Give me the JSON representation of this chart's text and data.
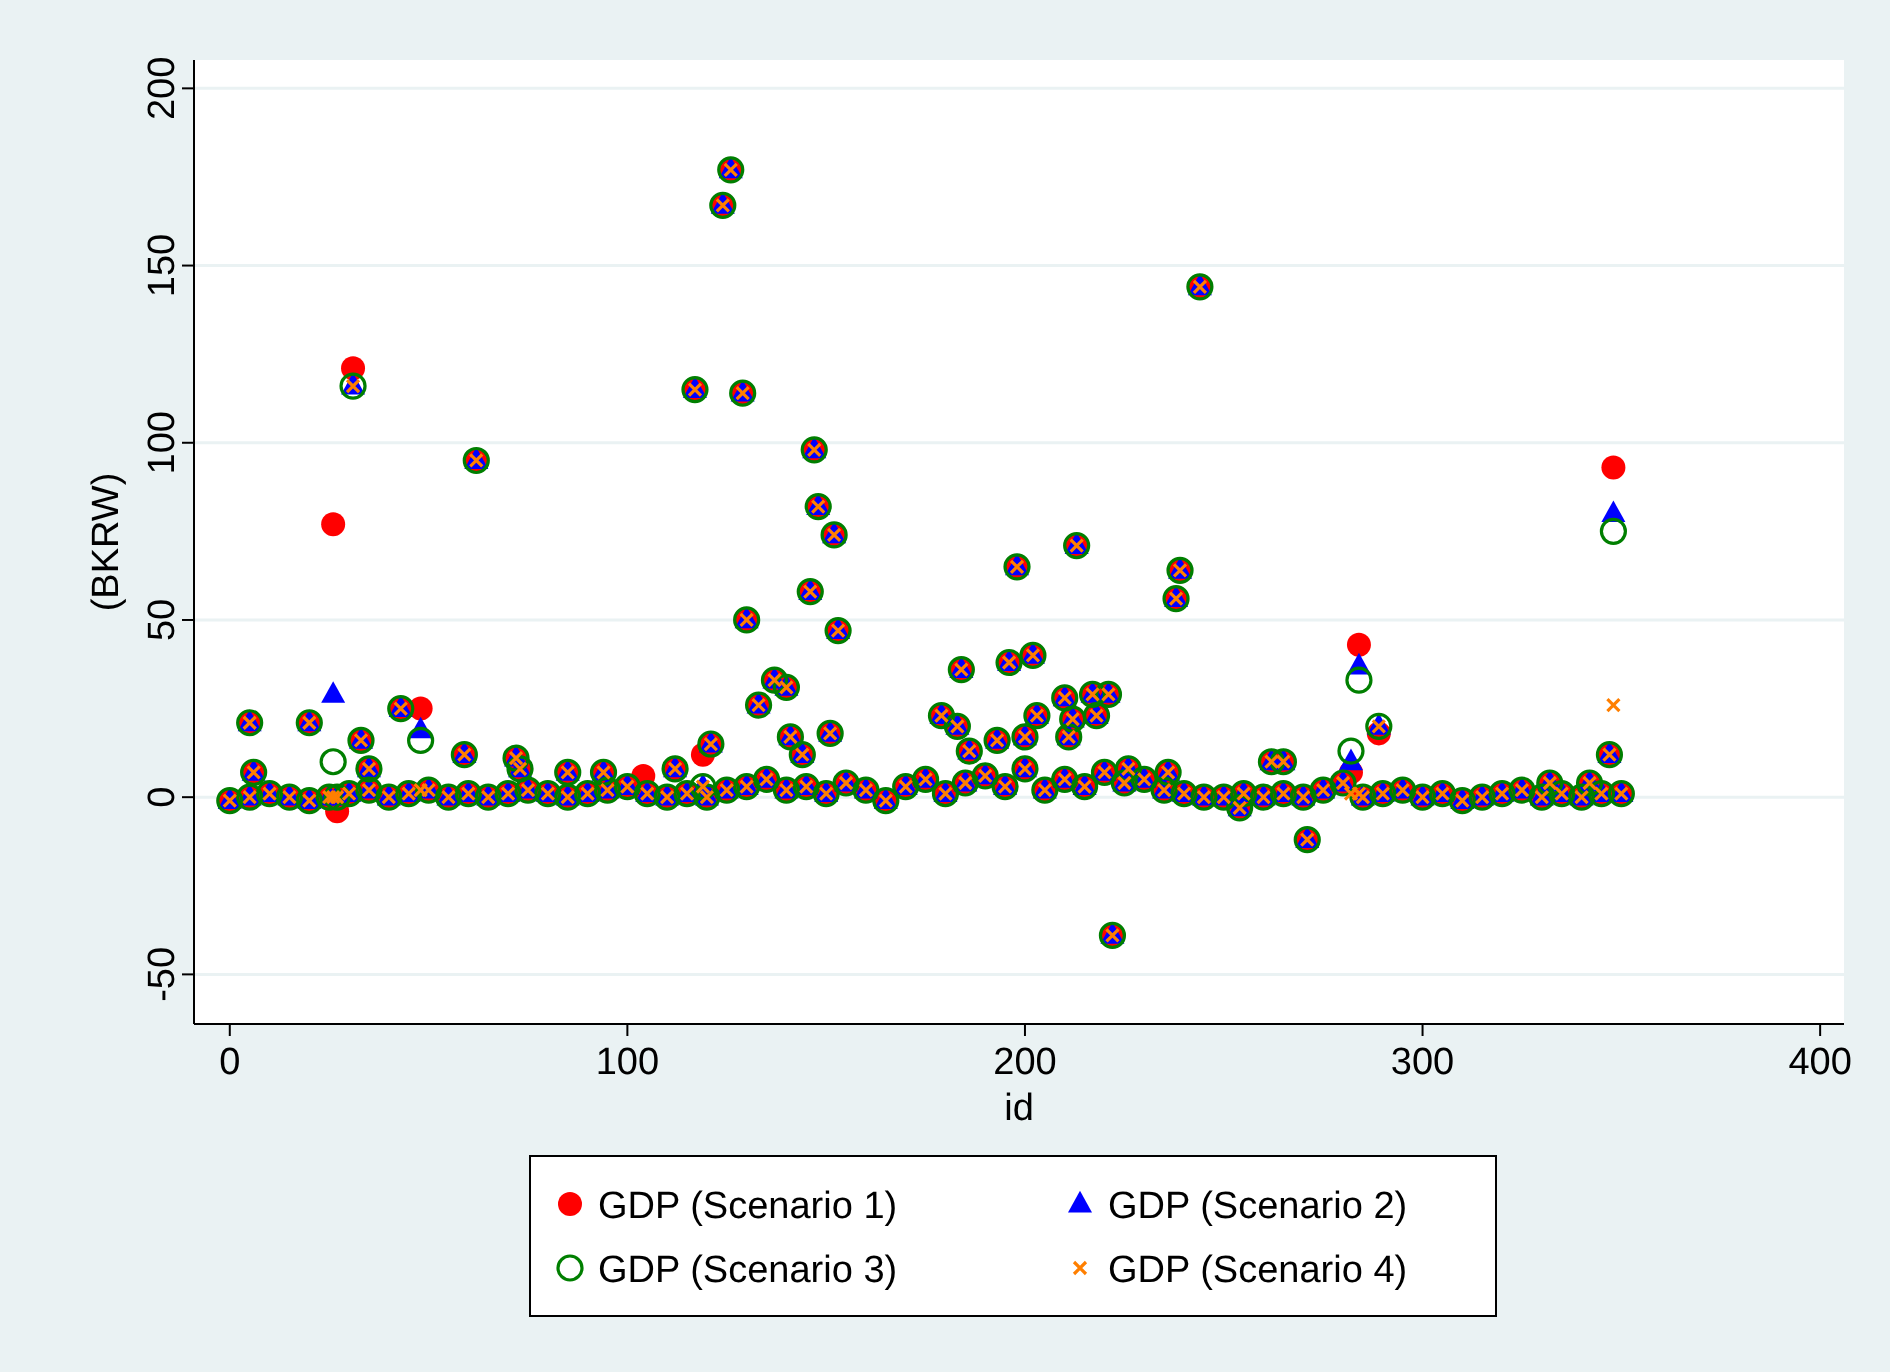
{
  "chart_data": {
    "type": "scatter",
    "xlabel": "id",
    "ylabel": "(BKRW)",
    "xlim": [
      -9,
      406
    ],
    "ylim": [
      -64,
      208
    ],
    "xticks": [
      0,
      100,
      200,
      300,
      400
    ],
    "yticks": [
      -50,
      0,
      50,
      100,
      150,
      200
    ],
    "grid": "y",
    "legend": "bottom",
    "x": [
      0,
      5,
      10,
      15,
      20,
      25,
      30,
      35,
      40,
      45,
      50,
      55,
      60,
      65,
      70,
      75,
      80,
      85,
      90,
      95,
      100,
      105,
      110,
      115,
      120,
      125,
      130,
      135,
      140,
      145,
      150,
      155,
      160,
      165,
      170,
      175,
      180,
      185,
      190,
      195,
      200,
      205,
      210,
      215,
      220,
      225,
      230,
      235,
      240,
      245,
      250,
      255,
      260,
      265,
      270,
      275,
      280,
      285,
      290,
      295,
      300,
      305,
      310,
      315,
      320,
      325,
      330,
      335,
      340,
      345,
      350,
      5,
      6,
      20,
      26,
      27,
      31,
      33,
      35,
      43,
      48,
      59,
      62,
      72,
      73,
      85,
      94,
      104,
      112,
      117,
      119,
      121,
      124,
      126,
      129,
      130,
      133,
      137,
      140,
      141,
      144,
      146,
      147,
      148,
      151,
      152,
      153,
      179,
      183,
      184,
      186,
      193,
      196,
      198,
      200,
      202,
      203,
      210,
      211,
      212,
      213,
      217,
      218,
      221,
      222,
      226,
      236,
      238,
      239,
      244,
      254,
      262,
      265,
      271,
      282,
      284,
      289,
      332,
      342,
      348,
      347
    ],
    "series": [
      {
        "name": "GDP (Scenario 1)",
        "color": "#ff0000",
        "marker": "circle",
        "values": [
          -1,
          0,
          1,
          0,
          -1,
          0,
          1,
          2,
          0,
          1,
          2,
          0,
          1,
          0,
          1,
          2,
          1,
          0,
          1,
          2,
          3,
          1,
          0,
          1,
          0,
          2,
          3,
          5,
          2,
          3,
          1,
          4,
          2,
          -1,
          3,
          5,
          1,
          4,
          6,
          3,
          8,
          2,
          5,
          3,
          7,
          4,
          5,
          2,
          1,
          0,
          0,
          1,
          0,
          1,
          0,
          2,
          4,
          0,
          1,
          2,
          0,
          1,
          -1,
          0,
          1,
          2,
          0,
          1,
          0,
          1,
          1,
          21,
          7,
          21,
          77,
          -4,
          121,
          16,
          8,
          25,
          25,
          12,
          95,
          11,
          8,
          7,
          7,
          6,
          8,
          115,
          12,
          15,
          167,
          177,
          114,
          50,
          26,
          33,
          31,
          17,
          12,
          58,
          98,
          82,
          18,
          74,
          47,
          23,
          20,
          36,
          13,
          16,
          38,
          65,
          17,
          40,
          23,
          28,
          17,
          22,
          71,
          29,
          23,
          29,
          -39,
          8,
          7,
          56,
          64,
          144,
          -3,
          10,
          10,
          -12,
          7,
          43,
          18,
          4,
          4,
          93,
          12
        ]
      },
      {
        "name": "GDP (Scenario 2)",
        "color": "#0000ff",
        "marker": "triangle",
        "values": [
          -1,
          0,
          1,
          0,
          -1,
          0,
          1,
          2,
          0,
          1,
          2,
          0,
          1,
          0,
          1,
          2,
          1,
          0,
          1,
          2,
          3,
          1,
          0,
          1,
          0,
          2,
          3,
          5,
          2,
          3,
          1,
          4,
          2,
          -1,
          3,
          5,
          1,
          4,
          6,
          3,
          8,
          2,
          5,
          3,
          7,
          4,
          5,
          2,
          1,
          0,
          0,
          1,
          0,
          1,
          0,
          2,
          4,
          0,
          1,
          2,
          0,
          1,
          -1,
          0,
          1,
          2,
          0,
          1,
          0,
          1,
          1,
          21,
          7,
          21,
          29,
          0,
          116,
          16,
          8,
          25,
          19,
          12,
          95,
          11,
          8,
          7,
          7,
          null,
          8,
          115,
          3,
          15,
          167,
          177,
          114,
          50,
          26,
          33,
          31,
          17,
          12,
          58,
          98,
          82,
          18,
          74,
          47,
          23,
          20,
          36,
          13,
          16,
          38,
          65,
          17,
          40,
          23,
          28,
          17,
          22,
          71,
          29,
          23,
          29,
          -39,
          8,
          7,
          56,
          64,
          144,
          -3,
          10,
          10,
          -12,
          10,
          37,
          20,
          4,
          4,
          80,
          12
        ]
      },
      {
        "name": "GDP (Scenario 3)",
        "color": "#007f00",
        "marker": "circle",
        "values": [
          -1,
          0,
          1,
          0,
          -1,
          0,
          1,
          2,
          0,
          1,
          2,
          0,
          1,
          0,
          1,
          2,
          1,
          0,
          1,
          2,
          3,
          1,
          0,
          1,
          0,
          2,
          3,
          5,
          2,
          3,
          1,
          4,
          2,
          -1,
          3,
          5,
          1,
          4,
          6,
          3,
          8,
          2,
          5,
          3,
          7,
          4,
          5,
          2,
          1,
          0,
          0,
          1,
          0,
          1,
          0,
          2,
          4,
          0,
          1,
          2,
          0,
          1,
          -1,
          0,
          1,
          2,
          0,
          1,
          0,
          1,
          1,
          21,
          7,
          21,
          10,
          0,
          116,
          16,
          8,
          25,
          16,
          12,
          95,
          11,
          8,
          7,
          7,
          null,
          8,
          115,
          3,
          15,
          167,
          177,
          114,
          50,
          26,
          33,
          31,
          17,
          12,
          58,
          98,
          82,
          18,
          74,
          47,
          23,
          20,
          36,
          13,
          16,
          38,
          65,
          17,
          40,
          23,
          28,
          17,
          22,
          71,
          29,
          23,
          29,
          -39,
          8,
          7,
          56,
          64,
          144,
          -3,
          10,
          10,
          -12,
          13,
          33,
          20,
          4,
          4,
          75,
          12
        ]
      },
      {
        "name": "GDP (Scenario 4)",
        "color": "#ff7f00",
        "marker": "cross",
        "values": [
          -1,
          0,
          1,
          0,
          -1,
          0,
          1,
          2,
          0,
          1,
          2,
          0,
          1,
          0,
          1,
          2,
          1,
          0,
          1,
          2,
          3,
          1,
          0,
          1,
          0,
          2,
          3,
          5,
          2,
          3,
          1,
          4,
          2,
          -1,
          3,
          5,
          1,
          4,
          6,
          3,
          8,
          2,
          5,
          3,
          7,
          4,
          5,
          2,
          1,
          0,
          0,
          1,
          0,
          1,
          0,
          2,
          4,
          0,
          1,
          2,
          0,
          1,
          -1,
          0,
          1,
          2,
          0,
          1,
          0,
          1,
          1,
          21,
          7,
          21,
          0,
          0,
          116,
          16,
          8,
          25,
          2,
          12,
          95,
          11,
          8,
          7,
          7,
          null,
          8,
          115,
          3,
          15,
          167,
          177,
          114,
          50,
          26,
          33,
          31,
          17,
          12,
          58,
          98,
          82,
          18,
          74,
          47,
          23,
          20,
          36,
          13,
          16,
          38,
          65,
          17,
          40,
          23,
          28,
          17,
          22,
          71,
          29,
          23,
          29,
          -39,
          8,
          7,
          56,
          64,
          144,
          -3,
          10,
          10,
          -12,
          1,
          1,
          20,
          4,
          4,
          26,
          12
        ]
      }
    ]
  }
}
